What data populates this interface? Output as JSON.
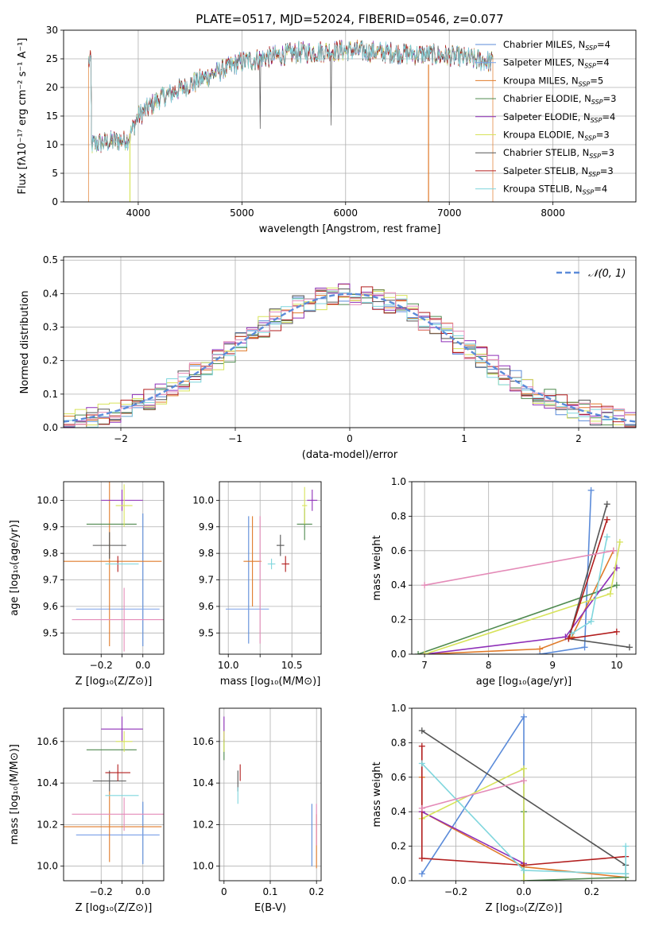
{
  "title": "PLATE=0517, MJD=52024, FIBERID=0546, z=0.077",
  "colors": {
    "c1": "#5b8bd9",
    "c2": "#7aa0e8",
    "c3": "#e07b2a",
    "c4": "#4f8a4f",
    "c5": "#8e2fb8",
    "c6": "#d7e35a",
    "c7": "#555555",
    "c8": "#b21e1e",
    "c9": "#7fd6dd",
    "c10": "#e48bb8"
  },
  "chart_data": [
    {
      "type": "line",
      "id": "spectrum",
      "xlabel": "wavelength [Angstrom, rest frame]",
      "ylabel": "Flux [fλ10⁻¹⁷ erg cm⁻² s⁻¹ A⁻¹]",
      "xlim": [
        3280,
        8800
      ],
      "ylim": [
        0,
        30
      ],
      "xticks": [
        4000,
        5000,
        6000,
        7000,
        8000
      ],
      "yticks": [
        0,
        5,
        10,
        15,
        20,
        25,
        30
      ],
      "x_range": [
        3520,
        7420
      ],
      "legend": "upper right",
      "series": [
        {
          "name": "Chabrier MILES, N_SSP=4",
          "color": "#5b8bd9"
        },
        {
          "name": "Salpeter MILES, N_SSP=4",
          "color": "#7aa0e8"
        },
        {
          "name": "Kroupa MILES, N_SSP=5",
          "color": "#e07b2a"
        },
        {
          "name": "Chabrier ELODIE, N_SSP=3",
          "color": "#4f8a4f"
        },
        {
          "name": "Salpeter ELODIE, N_SSP=4",
          "color": "#8e2fb8"
        },
        {
          "name": "Kroupa ELODIE, N_SSP=3",
          "color": "#d7e35a"
        },
        {
          "name": "Chabrier STELIB, N_SSP=3",
          "color": "#555555"
        },
        {
          "name": "Salpeter STELIB, N_SSP=3",
          "color": "#b21e1e"
        },
        {
          "name": "Kroupa STELIB, N_SSP=4",
          "color": "#7fd6dd"
        }
      ],
      "continuum": [
        [
          3550,
          10
        ],
        [
          3900,
          11
        ],
        [
          4000,
          15
        ],
        [
          4200,
          18
        ],
        [
          4500,
          20.5
        ],
        [
          4800,
          23
        ],
        [
          5000,
          24.5
        ],
        [
          5500,
          26
        ],
        [
          6000,
          26.5
        ],
        [
          6500,
          26
        ],
        [
          7000,
          25.5
        ],
        [
          7400,
          24.5
        ]
      ]
    },
    {
      "type": "histogram",
      "id": "residuals",
      "xlabel": "(data-model)/error",
      "ylabel": "Normed distribution",
      "xlim": [
        -2.5,
        2.5
      ],
      "ylim": [
        0,
        0.51
      ],
      "xticks": [
        -2,
        -1,
        0,
        1,
        2
      ],
      "yticks": [
        0,
        0.1,
        0.2,
        0.3,
        0.4,
        0.5
      ],
      "bin_width": 0.1,
      "legend_label": "𝒩(0, 1)",
      "reference_curve": "normal(0,1)",
      "reference_color": "#5b8bd9",
      "series_colors": [
        "#5b8bd9",
        "#e07b2a",
        "#4f8a4f",
        "#8e2fb8",
        "#d7e35a",
        "#555555",
        "#b21e1e",
        "#7fd6dd",
        "#e48bb8"
      ]
    },
    {
      "type": "scatter",
      "id": "z-age",
      "xlabel": "Z [log₁₀(Z/Z⊙)]",
      "ylabel": "age  [log₁₀(age/yr)]",
      "xlim": [
        -0.38,
        0.1
      ],
      "ylim": [
        9.42,
        10.07
      ],
      "xticks": [
        -0.2,
        -0.1,
        0.0
      ],
      "xticklabels": [
        "−0.2",
        "",
        "0.0"
      ],
      "yticks": [
        9.5,
        9.6,
        9.7,
        9.8,
        9.9,
        10.0
      ],
      "points": [
        {
          "color": "#5b8bd9",
          "x": 0.0,
          "xerr": 0.0,
          "y": 9.7,
          "yerr": 0.25
        },
        {
          "color": "#7aa0e8",
          "x": -0.12,
          "xerr": 0.2,
          "y": 9.59,
          "yerr": 0.0
        },
        {
          "color": "#e07b2a",
          "x": -0.16,
          "xerr": 0.25,
          "y": 9.77,
          "yerr": 0.32
        },
        {
          "color": "#4f8a4f",
          "x": -0.15,
          "xerr": 0.12,
          "y": 9.91,
          "yerr": 0.0
        },
        {
          "color": "#8e2fb8",
          "x": -0.1,
          "xerr": 0.1,
          "y": 10.0,
          "yerr": 0.04
        },
        {
          "color": "#d7e35a",
          "x": -0.09,
          "xerr": 0.04,
          "y": 9.98,
          "yerr": 0.08
        },
        {
          "color": "#555555",
          "x": -0.16,
          "xerr": 0.08,
          "y": 9.83,
          "yerr": 0.05
        },
        {
          "color": "#b21e1e",
          "x": -0.12,
          "xerr": 0.06,
          "y": 9.76,
          "yerr": 0.03
        },
        {
          "color": "#7fd6dd",
          "x": -0.1,
          "xerr": 0.08,
          "y": 9.76,
          "yerr": 0.0
        },
        {
          "color": "#e48bb8",
          "x": -0.09,
          "xerr": 0.25,
          "y": 9.55,
          "yerr": 0.12
        }
      ]
    },
    {
      "type": "scatter",
      "id": "mass-age",
      "xlabel": "mass [log₁₀(M/M⊙)]",
      "ylabel": "",
      "xlim": [
        9.93,
        10.73
      ],
      "ylim": [
        9.42,
        10.07
      ],
      "xticks": [
        10.0,
        10.25,
        10.5
      ],
      "xticklabels": [
        "10.0",
        "",
        "10.5"
      ],
      "yticks": [
        9.5,
        9.6,
        9.7,
        9.8,
        9.9,
        10.0
      ],
      "points": [
        {
          "color": "#5b8bd9",
          "x": 10.16,
          "xerr": 0.0,
          "y": 9.7,
          "yerr": 0.24
        },
        {
          "color": "#7aa0e8",
          "x": 10.15,
          "xerr": 0.17,
          "y": 9.59,
          "yerr": 0.0
        },
        {
          "color": "#e07b2a",
          "x": 10.19,
          "xerr": 0.07,
          "y": 9.77,
          "yerr": 0.17
        },
        {
          "color": "#4f8a4f",
          "x": 10.6,
          "xerr": 0.06,
          "y": 9.91,
          "yerr": 0.06
        },
        {
          "color": "#8e2fb8",
          "x": 10.66,
          "xerr": 0.04,
          "y": 10.0,
          "yerr": 0.04
        },
        {
          "color": "#d7e35a",
          "x": 10.6,
          "xerr": 0.02,
          "y": 9.98,
          "yerr": 0.07
        },
        {
          "color": "#555555",
          "x": 10.41,
          "xerr": 0.03,
          "y": 9.83,
          "yerr": 0.04
        },
        {
          "color": "#b21e1e",
          "x": 10.45,
          "xerr": 0.03,
          "y": 9.76,
          "yerr": 0.03
        },
        {
          "color": "#7fd6dd",
          "x": 10.34,
          "xerr": 0.03,
          "y": 9.76,
          "yerr": 0.02
        },
        {
          "color": "#e48bb8",
          "x": 10.25,
          "xerr": 0.0,
          "y": 9.7,
          "yerr": 0.24
        }
      ]
    },
    {
      "type": "line",
      "id": "age-weight",
      "xlabel": "age  [log₁₀(age/yr)]",
      "ylabel": "mass weight",
      "xlim": [
        6.8,
        10.3
      ],
      "ylim": [
        0,
        1.0
      ],
      "xticks": [
        7,
        8,
        9,
        10
      ],
      "yticks": [
        0,
        0.2,
        0.4,
        0.6,
        0.8,
        1.0
      ],
      "series": [
        {
          "color": "#5b8bd9",
          "x": [
            9.6,
            9.5,
            8.8
          ],
          "y": [
            0.95,
            0.04,
            0.0
          ]
        },
        {
          "color": "#e07b2a",
          "x": [
            9.95,
            9.3,
            8.8,
            7.0
          ],
          "y": [
            0.6,
            0.1,
            0.03,
            0.0
          ]
        },
        {
          "color": "#4f8a4f",
          "x": [
            10.0,
            6.9
          ],
          "y": [
            0.4,
            0.0
          ]
        },
        {
          "color": "#8e2fb8",
          "x": [
            10.0,
            9.2,
            7.0
          ],
          "y": [
            0.5,
            0.1,
            0.0
          ]
        },
        {
          "color": "#d7e35a",
          "x": [
            10.05,
            9.9,
            7.0
          ],
          "y": [
            0.65,
            0.35,
            0.0
          ]
        },
        {
          "color": "#555555",
          "x": [
            9.85,
            9.25,
            10.2
          ],
          "y": [
            0.87,
            0.09,
            0.04
          ]
        },
        {
          "color": "#b21e1e",
          "x": [
            9.85,
            9.25,
            10.0
          ],
          "y": [
            0.78,
            0.09,
            0.13
          ]
        },
        {
          "color": "#7fd6dd",
          "x": [
            9.85,
            9.6,
            9.3
          ],
          "y": [
            0.68,
            0.19,
            0.12
          ]
        },
        {
          "color": "#e48bb8",
          "x": [
            9.95,
            7.0
          ],
          "y": [
            0.6,
            0.4
          ]
        }
      ]
    },
    {
      "type": "scatter",
      "id": "z-mass",
      "xlabel": "Z [log₁₀(Z/Z⊙)]",
      "ylabel": "mass [log₁₀(M/M⊙)]",
      "xlim": [
        -0.38,
        0.1
      ],
      "ylim": [
        9.93,
        10.76
      ],
      "xticks": [
        -0.2,
        -0.1,
        0.0
      ],
      "xticklabels": [
        "−0.2",
        "",
        "0.0"
      ],
      "yticks": [
        10.0,
        10.2,
        10.4,
        10.6
      ],
      "points": [
        {
          "color": "#5b8bd9",
          "x": 0.0,
          "xerr": 0.0,
          "y": 10.16,
          "yerr": 0.15
        },
        {
          "color": "#7aa0e8",
          "x": -0.12,
          "xerr": 0.2,
          "y": 10.15,
          "yerr": 0.0
        },
        {
          "color": "#e07b2a",
          "x": -0.16,
          "xerr": 0.25,
          "y": 10.19,
          "yerr": 0.17
        },
        {
          "color": "#4f8a4f",
          "x": -0.15,
          "xerr": 0.12,
          "y": 10.56,
          "yerr": 0.0
        },
        {
          "color": "#8e2fb8",
          "x": -0.1,
          "xerr": 0.1,
          "y": 10.66,
          "yerr": 0.06
        },
        {
          "color": "#d7e35a",
          "x": -0.09,
          "xerr": 0.04,
          "y": 10.6,
          "yerr": 0.05
        },
        {
          "color": "#555555",
          "x": -0.16,
          "xerr": 0.08,
          "y": 10.41,
          "yerr": 0.05
        },
        {
          "color": "#b21e1e",
          "x": -0.12,
          "xerr": 0.06,
          "y": 10.45,
          "yerr": 0.04
        },
        {
          "color": "#7fd6dd",
          "x": -0.1,
          "xerr": 0.08,
          "y": 10.34,
          "yerr": 0.0
        },
        {
          "color": "#e48bb8",
          "x": -0.09,
          "xerr": 0.25,
          "y": 10.25,
          "yerr": 0.08
        }
      ]
    },
    {
      "type": "scatter",
      "id": "ebv-mass",
      "xlabel": "E(B-V)",
      "ylabel": "",
      "xlim": [
        -0.01,
        0.21
      ],
      "ylim": [
        9.93,
        10.76
      ],
      "xticks": [
        0.0,
        0.1,
        0.2
      ],
      "yticks": [
        10.0,
        10.2,
        10.4,
        10.6
      ],
      "points": [
        {
          "color": "#5b8bd9",
          "x": 0.19,
          "y": 10.15,
          "yerr": 0.15
        },
        {
          "color": "#e07b2a",
          "x": 0.2,
          "y": 10.12,
          "yerr": 0.13
        },
        {
          "color": "#4f8a4f",
          "x": 0.0,
          "y": 10.56,
          "yerr": 0.05
        },
        {
          "color": "#8e2fb8",
          "x": 0.0,
          "y": 10.66,
          "yerr": 0.06
        },
        {
          "color": "#d7e35a",
          "x": 0.0,
          "y": 10.6,
          "yerr": 0.05
        },
        {
          "color": "#555555",
          "x": 0.03,
          "y": 10.41,
          "yerr": 0.05
        },
        {
          "color": "#b21e1e",
          "x": 0.035,
          "y": 10.45,
          "yerr": 0.04
        },
        {
          "color": "#7fd6dd",
          "x": 0.03,
          "y": 10.34,
          "yerr": 0.04
        },
        {
          "color": "#e48bb8",
          "x": 0.2,
          "y": 10.2,
          "yerr": 0.1
        }
      ]
    },
    {
      "type": "line",
      "id": "z-weight",
      "xlabel": "Z [log₁₀(Z/Z⊙)]",
      "ylabel": "mass weight",
      "xlim": [
        -0.33,
        0.33
      ],
      "ylim": [
        0,
        1.0
      ],
      "xticks": [
        -0.2,
        0.0,
        0.2
      ],
      "xticklabels": [
        "−0.2",
        "0.0",
        "0.2"
      ],
      "yticks": [
        0,
        0.2,
        0.4,
        0.6,
        0.8,
        1.0
      ],
      "series": [
        {
          "color": "#5b8bd9",
          "x": [
            -0.3,
            0.0,
            0.0
          ],
          "y": [
            0.04,
            0.95,
            0.0
          ]
        },
        {
          "color": "#e07b2a",
          "x": [
            -0.3,
            -0.3,
            0.0,
            0.3
          ],
          "y": [
            0.6,
            0.4,
            0.08,
            0.02
          ]
        },
        {
          "color": "#4f8a4f",
          "x": [
            0.0,
            0.0,
            0.3
          ],
          "y": [
            0.4,
            0.0,
            0.02
          ]
        },
        {
          "color": "#8e2fb8",
          "x": [
            -0.3,
            0.0
          ],
          "y": [
            0.4,
            0.1
          ]
        },
        {
          "color": "#d7e35a",
          "x": [
            -0.3,
            0.0,
            0.0
          ],
          "y": [
            0.36,
            0.65,
            0.0
          ]
        },
        {
          "color": "#555555",
          "x": [
            -0.3,
            0.3,
            0.3
          ],
          "y": [
            0.87,
            0.09,
            0.04
          ]
        },
        {
          "color": "#b21e1e",
          "x": [
            -0.3,
            -0.3,
            0.0,
            0.3
          ],
          "y": [
            0.78,
            0.13,
            0.09,
            0.14
          ]
        },
        {
          "color": "#7fd6dd",
          "x": [
            -0.3,
            0.0,
            0.3,
            0.3
          ],
          "y": [
            0.68,
            0.06,
            0.04,
            0.2
          ]
        },
        {
          "color": "#e48bb8",
          "x": [
            -0.3,
            0.0
          ],
          "y": [
            0.42,
            0.58
          ]
        }
      ]
    }
  ]
}
